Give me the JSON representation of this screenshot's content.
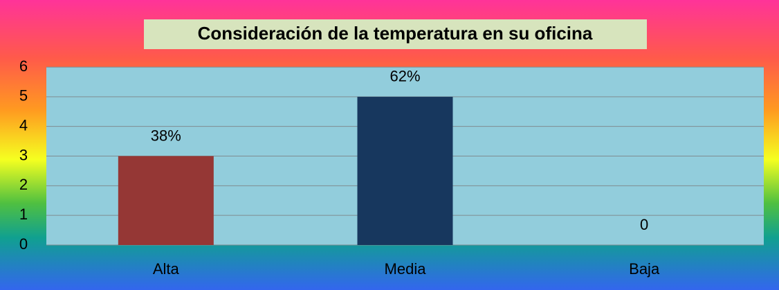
{
  "chart_data": {
    "type": "bar",
    "title": "Consideración de la  temperatura en su oficina",
    "categories": [
      "Alta",
      "Media",
      "Baja"
    ],
    "values": [
      3,
      5,
      0
    ],
    "colors": [
      "#953735",
      "#17375e",
      "#17375e"
    ],
    "annotations": [
      "38%",
      "62%",
      "0"
    ],
    "ylim": [
      0,
      6
    ],
    "yticks": [
      0,
      1,
      2,
      3,
      4,
      5,
      6
    ],
    "grid": true
  }
}
